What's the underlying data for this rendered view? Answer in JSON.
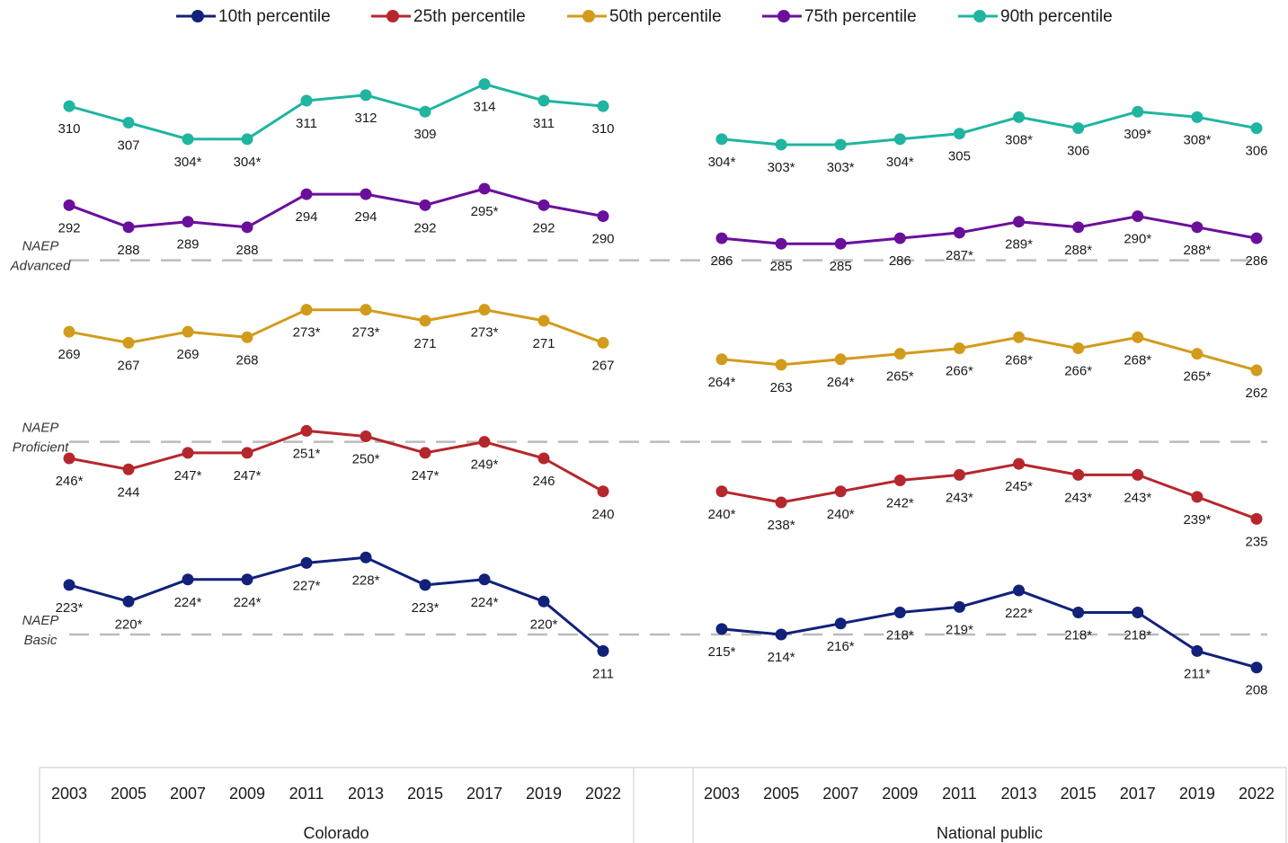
{
  "chart_data": {
    "type": "line",
    "title": "",
    "legend": {
      "placement": "top"
    },
    "series": [
      {
        "name": "10th percentile",
        "color": "#12217a"
      },
      {
        "name": "25th percentile",
        "color": "#b5272d"
      },
      {
        "name": "50th percentile",
        "color": "#d29b1c"
      },
      {
        "name": "75th percentile",
        "color": "#6a0f9c"
      },
      {
        "name": "90th percentile",
        "color": "#1fb5a0"
      }
    ],
    "reference_lines": [
      {
        "label_line1": "NAEP",
        "label_line2": "Basic",
        "value": 214,
        "color": "#bbbbbb"
      },
      {
        "label_line1": "NAEP",
        "label_line2": "Proficient",
        "value": 249,
        "color": "#bbbbbb"
      },
      {
        "label_line1": "NAEP",
        "label_line2": "Advanced",
        "value": 282,
        "color": "#bbbbbb"
      }
    ],
    "panels": [
      {
        "name": "Colorado",
        "x": [
          "2003",
          "2005",
          "2007",
          "2009",
          "2011",
          "2013",
          "2015",
          "2017",
          "2019",
          "2022"
        ],
        "values": {
          "10th percentile": [
            223,
            220,
            224,
            224,
            227,
            228,
            223,
            224,
            220,
            211
          ],
          "25th percentile": [
            246,
            244,
            247,
            247,
            251,
            250,
            247,
            249,
            246,
            240
          ],
          "50th percentile": [
            269,
            267,
            269,
            268,
            273,
            273,
            271,
            273,
            271,
            267
          ],
          "75th percentile": [
            292,
            288,
            289,
            288,
            294,
            294,
            292,
            295,
            292,
            290
          ],
          "90th percentile": [
            310,
            307,
            304,
            304,
            311,
            312,
            309,
            314,
            311,
            310
          ]
        },
        "labels": {
          "10th percentile": [
            "223*",
            "220*",
            "224*",
            "224*",
            "227*",
            "228*",
            "223*",
            "224*",
            "220*",
            "211"
          ],
          "25th percentile": [
            "246*",
            "244",
            "247*",
            "247*",
            "251*",
            "250*",
            "247*",
            "249*",
            "246",
            "240"
          ],
          "50th percentile": [
            "269",
            "267",
            "269",
            "268",
            "273*",
            "273*",
            "271",
            "273*",
            "271",
            "267"
          ],
          "75th percentile": [
            "292",
            "288",
            "289",
            "288",
            "294",
            "294",
            "292",
            "295*",
            "292",
            "290"
          ],
          "90th percentile": [
            "310",
            "307",
            "304*",
            "304*",
            "311",
            "312",
            "309",
            "314",
            "311",
            "310"
          ]
        }
      },
      {
        "name": "National public",
        "x": [
          "2003",
          "2005",
          "2007",
          "2009",
          "2011",
          "2013",
          "2015",
          "2017",
          "2019",
          "2022"
        ],
        "values": {
          "10th percentile": [
            215,
            214,
            216,
            218,
            219,
            222,
            218,
            218,
            211,
            208
          ],
          "25th percentile": [
            240,
            238,
            240,
            242,
            243,
            245,
            243,
            243,
            239,
            235
          ],
          "50th percentile": [
            264,
            263,
            264,
            265,
            266,
            268,
            266,
            268,
            265,
            262
          ],
          "75th percentile": [
            286,
            285,
            285,
            286,
            287,
            289,
            288,
            290,
            288,
            286
          ],
          "90th percentile": [
            304,
            303,
            303,
            304,
            305,
            308,
            306,
            309,
            308,
            306
          ]
        },
        "labels": {
          "10th percentile": [
            "215*",
            "214*",
            "216*",
            "218*",
            "219*",
            "222*",
            "218*",
            "218*",
            "211*",
            "208"
          ],
          "25th percentile": [
            "240*",
            "238*",
            "240*",
            "242*",
            "243*",
            "245*",
            "243*",
            "243*",
            "239*",
            "235"
          ],
          "50th percentile": [
            "264*",
            "263",
            "264*",
            "265*",
            "266*",
            "268*",
            "266*",
            "268*",
            "265*",
            "262"
          ],
          "75th percentile": [
            "286",
            "285",
            "285",
            "286",
            "287*",
            "289*",
            "288*",
            "290*",
            "288*",
            "286"
          ],
          "90th percentile": [
            "304*",
            "303*",
            "303*",
            "304*",
            "305",
            "308*",
            "306",
            "309*",
            "308*",
            "306"
          ]
        }
      }
    ]
  }
}
